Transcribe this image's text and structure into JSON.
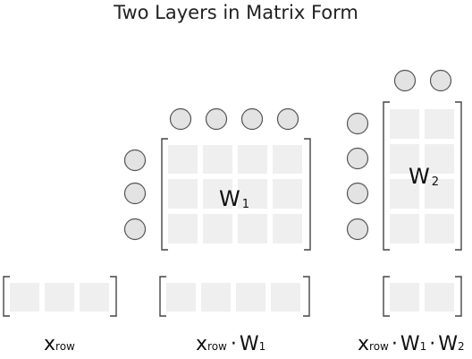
{
  "diagram": {
    "title": "Two Layers in Matrix Form",
    "w1_label": {
      "main": "W",
      "sub": "1"
    },
    "w2_label": {
      "main": "W",
      "sub": "2"
    },
    "captions": {
      "x_row": {
        "main": "x",
        "sub": "row"
      },
      "x_row_w1": {
        "main": "x",
        "sub": "row",
        "op": "·",
        "w": "W",
        "wsub": "1"
      },
      "x_row_w1_w2": {
        "main": "x",
        "sub": "row",
        "op": "·",
        "w": "W",
        "wsub": "1",
        "op2": "·",
        "w2": "W",
        "w2sub": "2"
      }
    }
  }
}
